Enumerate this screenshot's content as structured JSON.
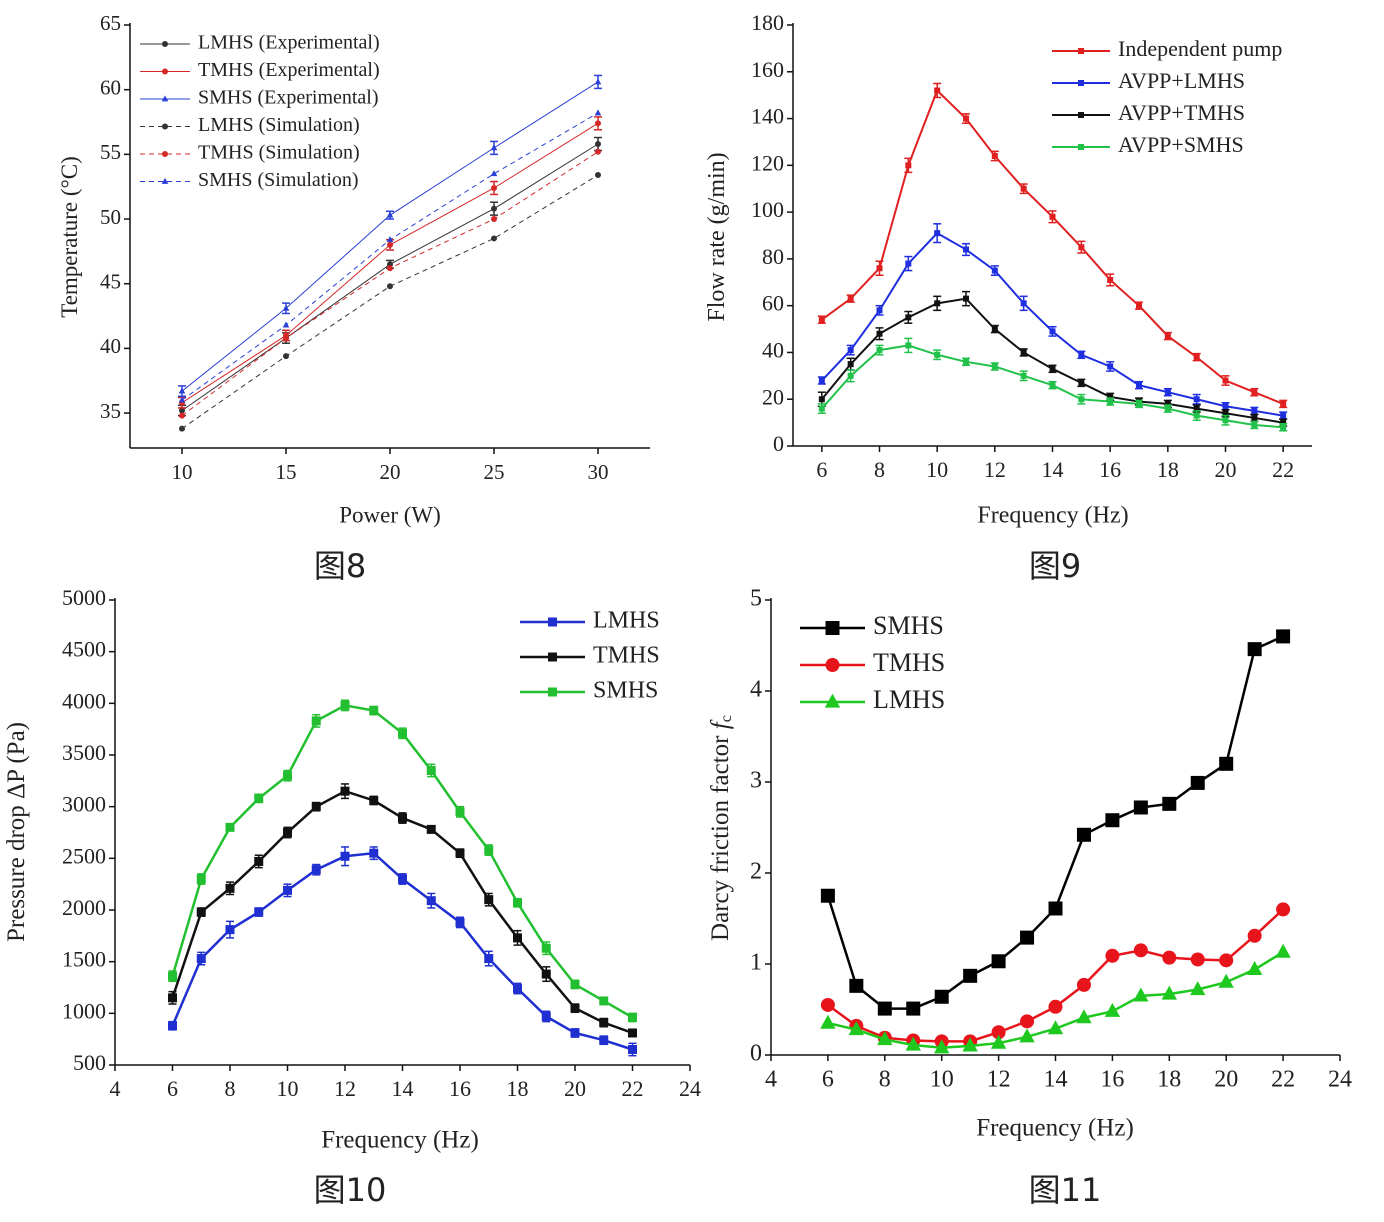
{
  "chart_data": [
    {
      "type": "line",
      "caption": "图8",
      "xlabel": "Power (W)",
      "ylabel": "Temperature (°C)",
      "x": [
        10,
        15,
        20,
        25,
        30
      ],
      "xlim": [
        7.5,
        32.5
      ],
      "xticks": [
        10,
        15,
        20,
        25,
        30
      ],
      "ylim": [
        32.3,
        65
      ],
      "yticks": [
        35,
        40,
        45,
        50,
        55,
        60,
        65
      ],
      "legend": "upper left",
      "series": [
        {
          "name": "LMHS (Experimental)",
          "color": "#333333",
          "marker": "circle",
          "linestyle": "solid",
          "values": [
            35.2,
            40.8,
            46.5,
            50.8,
            55.8
          ],
          "errors": [
            0.4,
            0.4,
            0.3,
            0.5,
            0.5
          ]
        },
        {
          "name": "TMHS (Experimental)",
          "color": "#d62728",
          "marker": "circle",
          "linestyle": "solid",
          "values": [
            35.8,
            41.0,
            48.0,
            52.4,
            57.4
          ],
          "errors": [
            0.4,
            0.4,
            0.4,
            0.5,
            0.5
          ]
        },
        {
          "name": "SMHS (Experimental)",
          "color": "#2a3fd6",
          "marker": "triangle",
          "linestyle": "solid",
          "values": [
            36.7,
            43.1,
            50.3,
            55.5,
            60.6
          ],
          "errors": [
            0.4,
            0.4,
            0.3,
            0.5,
            0.5
          ]
        },
        {
          "name": "LMHS (Simulation)",
          "color": "#333333",
          "marker": "circle",
          "linestyle": "dashed",
          "values": [
            33.8,
            39.4,
            44.8,
            48.5,
            53.4
          ]
        },
        {
          "name": "TMHS (Simulation)",
          "color": "#d62728",
          "marker": "circle",
          "linestyle": "dashed",
          "values": [
            34.8,
            40.8,
            46.2,
            50.0,
            55.2
          ]
        },
        {
          "name": "SMHS (Simulation)",
          "color": "#2a3fd6",
          "marker": "triangle",
          "linestyle": "dashed",
          "values": [
            36.0,
            41.8,
            48.4,
            53.5,
            58.2
          ]
        }
      ]
    },
    {
      "type": "line",
      "caption": "图9",
      "xlabel": "Frequency (Hz)",
      "ylabel": "Flow rate (g/min)",
      "x": [
        6,
        7,
        8,
        9,
        10,
        11,
        12,
        13,
        14,
        15,
        16,
        17,
        18,
        19,
        20,
        21,
        22
      ],
      "xlim": [
        5,
        23
      ],
      "xticks": [
        6,
        8,
        10,
        12,
        14,
        16,
        18,
        20,
        22
      ],
      "ylim": [
        0,
        180
      ],
      "yticks": [
        0,
        20,
        40,
        60,
        80,
        100,
        120,
        140,
        160,
        180
      ],
      "legend": "upper right",
      "series": [
        {
          "name": "Independent pump",
          "color": "#e02020",
          "marker": "square",
          "linestyle": "solid",
          "values": [
            54,
            63,
            76,
            120,
            152,
            140,
            124,
            110,
            98,
            85,
            71,
            60,
            47,
            38,
            28,
            23,
            18
          ],
          "errors": [
            1.5,
            1.5,
            3,
            3,
            3,
            2,
            2,
            2,
            2.5,
            2.5,
            2.5,
            1.5,
            1.5,
            1.5,
            2,
            1.5,
            1.5
          ]
        },
        {
          "name": "AVPP+LMHS",
          "color": "#1f2fe0",
          "marker": "square",
          "linestyle": "solid",
          "values": [
            28,
            41,
            58,
            78,
            91,
            84,
            75,
            61,
            49,
            39,
            34,
            26,
            23,
            20,
            17,
            15,
            13
          ],
          "errors": [
            1.5,
            2,
            2,
            3,
            4,
            2.5,
            2,
            3,
            2,
            1.5,
            2,
            1.5,
            1.5,
            2,
            1.5,
            1.5,
            1.5
          ]
        },
        {
          "name": "AVPP+TMHS",
          "color": "#111111",
          "marker": "square",
          "linestyle": "solid",
          "values": [
            20,
            35,
            48,
            55,
            61,
            63,
            50,
            40,
            33,
            27,
            21,
            19,
            18,
            16,
            14,
            12,
            10
          ],
          "errors": [
            3,
            2.5,
            2.5,
            2.5,
            3,
            3,
            1.5,
            1.5,
            1.5,
            1.5,
            1.5,
            1.5,
            1.5,
            1.5,
            1.5,
            1.5,
            1.5
          ]
        },
        {
          "name": "AVPP+SMHS",
          "color": "#22c24a",
          "marker": "square",
          "linestyle": "solid",
          "values": [
            16,
            30,
            41,
            43,
            39,
            36,
            34,
            30,
            26,
            20,
            19,
            18,
            16,
            13,
            11,
            9,
            8
          ],
          "errors": [
            2,
            2.5,
            2,
            3,
            2,
            1.5,
            1.5,
            2,
            1.5,
            2,
            1.5,
            1.5,
            1.5,
            2,
            2,
            1.5,
            1.5
          ]
        }
      ]
    },
    {
      "type": "line",
      "caption": "图10",
      "xlabel": "Frequency (Hz)",
      "ylabel": "Pressure drop ΔP (Pa)",
      "x": [
        6,
        7,
        8,
        9,
        10,
        11,
        12,
        13,
        14,
        15,
        16,
        17,
        18,
        19,
        20,
        21,
        22
      ],
      "xlim": [
        4,
        24
      ],
      "xticks": [
        4,
        6,
        8,
        10,
        12,
        14,
        16,
        18,
        20,
        22,
        24
      ],
      "ylim": [
        500,
        5000
      ],
      "yticks": [
        500,
        1000,
        1500,
        2000,
        2500,
        3000,
        3500,
        4000,
        4500,
        5000
      ],
      "legend": "upper right",
      "series": [
        {
          "name": "LMHS",
          "color": "#1f2fd0",
          "marker": "square",
          "linestyle": "solid",
          "values": [
            880,
            1530,
            1810,
            1980,
            2190,
            2390,
            2520,
            2550,
            2300,
            2090,
            1880,
            1530,
            1240,
            970,
            810,
            740,
            650
          ],
          "errors": [
            40,
            60,
            80,
            40,
            60,
            50,
            90,
            60,
            50,
            70,
            50,
            70,
            50,
            50,
            40,
            40,
            60
          ]
        },
        {
          "name": "TMHS",
          "color": "#111111",
          "marker": "square",
          "linestyle": "solid",
          "values": [
            1150,
            1980,
            2210,
            2470,
            2750,
            3000,
            3150,
            3060,
            2890,
            2780,
            2550,
            2100,
            1730,
            1380,
            1050,
            910,
            810
          ],
          "errors": [
            60,
            40,
            60,
            60,
            50,
            40,
            70,
            40,
            50,
            30,
            40,
            60,
            70,
            70,
            40,
            40,
            30
          ]
        },
        {
          "name": "SMHS",
          "color": "#22c030",
          "marker": "square",
          "linestyle": "solid",
          "values": [
            1360,
            2300,
            2800,
            3080,
            3300,
            3830,
            3980,
            3930,
            3710,
            3350,
            2950,
            2580,
            2070,
            1630,
            1280,
            1120,
            960
          ],
          "errors": [
            50,
            50,
            30,
            40,
            50,
            60,
            50,
            40,
            50,
            60,
            50,
            50,
            40,
            60,
            40,
            30,
            40
          ]
        }
      ]
    },
    {
      "type": "line",
      "caption": "图11",
      "xlabel": "Frequency (Hz)",
      "ylabel": "Darcy friction factor ",
      "ylabel_symbol": "f",
      "ylabel_subscript": "c",
      "x": [
        6,
        7,
        8,
        9,
        10,
        11,
        12,
        13,
        14,
        15,
        16,
        17,
        18,
        19,
        20,
        21,
        22
      ],
      "xlim": [
        4,
        24
      ],
      "xticks": [
        4,
        6,
        8,
        10,
        12,
        14,
        16,
        18,
        20,
        22,
        24
      ],
      "ylim": [
        0,
        5
      ],
      "yticks": [
        0,
        1,
        2,
        3,
        4,
        5
      ],
      "legend": "upper left",
      "series": [
        {
          "name": "SMHS",
          "color": "#000000",
          "marker": "square",
          "linestyle": "solid",
          "values": [
            1.75,
            0.76,
            0.51,
            0.51,
            0.64,
            0.87,
            1.03,
            1.29,
            1.61,
            2.42,
            2.58,
            2.72,
            2.76,
            2.99,
            3.2,
            4.46,
            4.6
          ]
        },
        {
          "name": "TMHS",
          "color": "#e8141c",
          "marker": "circle",
          "linestyle": "solid",
          "values": [
            0.55,
            0.32,
            0.19,
            0.16,
            0.15,
            0.15,
            0.25,
            0.37,
            0.53,
            0.77,
            1.09,
            1.15,
            1.07,
            1.05,
            1.04,
            1.31,
            1.6
          ]
        },
        {
          "name": "LMHS",
          "color": "#1ec81e",
          "marker": "triangle",
          "linestyle": "solid",
          "values": [
            0.35,
            0.28,
            0.17,
            0.11,
            0.08,
            0.1,
            0.13,
            0.2,
            0.29,
            0.41,
            0.48,
            0.65,
            0.67,
            0.72,
            0.8,
            0.94,
            1.13
          ]
        }
      ]
    }
  ]
}
